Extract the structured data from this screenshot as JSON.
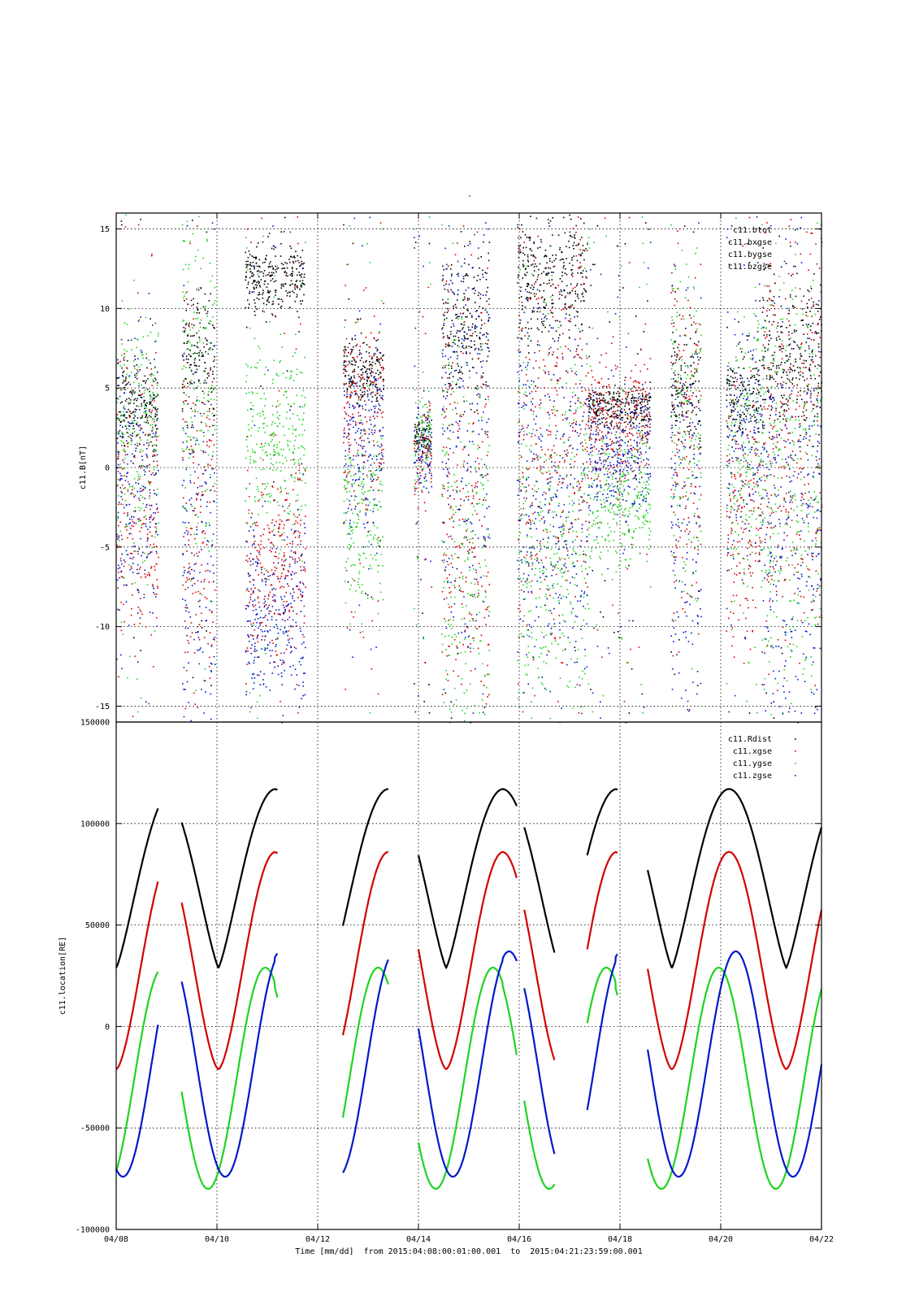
{
  "figure": {
    "title_mark": "-"
  },
  "colors": {
    "black": "#000000",
    "red": "#d40000",
    "green": "#1ed41e",
    "blue": "#0018c8"
  },
  "chart_data": [
    {
      "type": "scatter",
      "title": "",
      "xlabel": "",
      "ylabel": "c11.B[nT]",
      "x_range_days": [
        0,
        14
      ],
      "ylim": [
        -16,
        16
      ],
      "y_ticks": [
        15,
        10,
        5,
        0,
        -5,
        -10,
        -15
      ],
      "y_tick_labels": [
        "15",
        "10",
        "5",
        "0",
        "-5",
        "-10",
        "-15"
      ],
      "grid": true,
      "legend_position": "top-right",
      "series": [
        {
          "name": "c11.btot",
          "color": "#000000"
        },
        {
          "name": "c11.bxgse",
          "color": "#d40000"
        },
        {
          "name": "c11.bygse",
          "color": "#1ed41e"
        },
        {
          "name": "c11.bzgse",
          "color": "#0018c8"
        }
      ],
      "segments": [
        {
          "day_start": 0.0,
          "day_end": 0.83,
          "btot": 4.0,
          "bx": -3.5,
          "by": 2.0,
          "bz": -1.0,
          "spread": 4
        },
        {
          "day_start": 1.3,
          "day_end": 1.95,
          "btot": 7.0,
          "bx": -3.0,
          "by": 5.0,
          "bz": -6.0,
          "spread": 6
        },
        {
          "day_start": 2.55,
          "day_end": 3.75,
          "btot": 12.0,
          "bx": -6.0,
          "by": 2.0,
          "bz": -9.0,
          "spread": 3
        },
        {
          "day_start": 4.5,
          "day_end": 5.3,
          "btot": 6.0,
          "bx": 3.5,
          "by": -3.0,
          "bz": 2.0,
          "spread": 3
        },
        {
          "day_start": 5.9,
          "day_end": 6.25,
          "btot": 2.0,
          "bx": 1.0,
          "by": 2.0,
          "bz": 1.0,
          "spread": 1.5
        },
        {
          "day_start": 6.45,
          "day_end": 7.4,
          "btot": 9.0,
          "bx": -2.0,
          "by": -6.0,
          "bz": 3.0,
          "spread": 7
        },
        {
          "day_start": 7.95,
          "day_end": 9.35,
          "btot": 12.0,
          "bx": 2.0,
          "by": -4.0,
          "bz": -2.0,
          "spread": 6
        },
        {
          "day_start": 9.35,
          "day_end": 10.6,
          "btot": 3.8,
          "bx": 3.0,
          "by": -2.0,
          "bz": 1.0,
          "spread": 2
        },
        {
          "day_start": 11.0,
          "day_end": 11.6,
          "btot": 5.0,
          "bx": 3.0,
          "by": 2.0,
          "bz": -3.0,
          "spread": 6
        },
        {
          "day_start": 12.1,
          "day_end": 12.8,
          "btot": 4.5,
          "bx": -3.0,
          "by": 1.0,
          "bz": 2.0,
          "spread": 4
        },
        {
          "day_start": 12.8,
          "day_end": 14.0,
          "btot": 7.0,
          "bx": 3.0,
          "by": -2.0,
          "bz": -4.0,
          "spread": 7
        }
      ]
    },
    {
      "type": "line",
      "title": "",
      "xlabel": "Time [mm/dd]  from 2015:04:08:00:01:00.001  to  2015:04:21:23:59:00.001",
      "ylabel": "c11.location[RE]",
      "x_range_days": [
        0,
        14
      ],
      "ylim": [
        -100000,
        150000
      ],
      "y_ticks": [
        150000,
        100000,
        50000,
        0,
        -50000,
        -100000
      ],
      "y_tick_labels": [
        "150000",
        "100000",
        "50000",
        "0",
        "-50000",
        "-100000"
      ],
      "x_ticks": [
        0,
        2,
        4,
        6,
        8,
        10,
        12,
        14
      ],
      "x_tick_labels": [
        "04/08",
        "04/10",
        "04/12",
        "04/14",
        "04/16",
        "04/18",
        "04/20",
        "04/22"
      ],
      "grid": true,
      "legend_position": "top-right",
      "orbit_period_days": 2.27,
      "orbit_phase_day": 0.0,
      "series": [
        {
          "name": "c11.Rdist",
          "color": "#000000",
          "perigee": 29000,
          "apogee": 117000
        },
        {
          "name": "c11.xgse",
          "color": "#d40000",
          "min": -21000,
          "max": 86000
        },
        {
          "name": "c11.ygse",
          "color": "#1ed41e",
          "min": -80000,
          "max": 29000
        },
        {
          "name": "c11.zgse",
          "color": "#0018c8",
          "min": -74000,
          "max": 37000
        }
      ],
      "perigee_days": [
        0.0,
        2.03,
        4.27,
        6.55,
        8.8,
        11.03,
        13.3
      ],
      "data_segments_days": [
        [
          0.0,
          0.83
        ],
        [
          1.3,
          3.2
        ],
        [
          4.5,
          5.4
        ],
        [
          6.0,
          7.95
        ],
        [
          8.1,
          8.7
        ],
        [
          9.35,
          9.95
        ],
        [
          10.55,
          12.35
        ],
        [
          12.35,
          14.0
        ]
      ]
    }
  ],
  "x_axis": {
    "tick_labels": [
      "04/08",
      "04/10",
      "04/12",
      "04/14",
      "04/16",
      "04/18",
      "04/20",
      "04/22"
    ]
  }
}
